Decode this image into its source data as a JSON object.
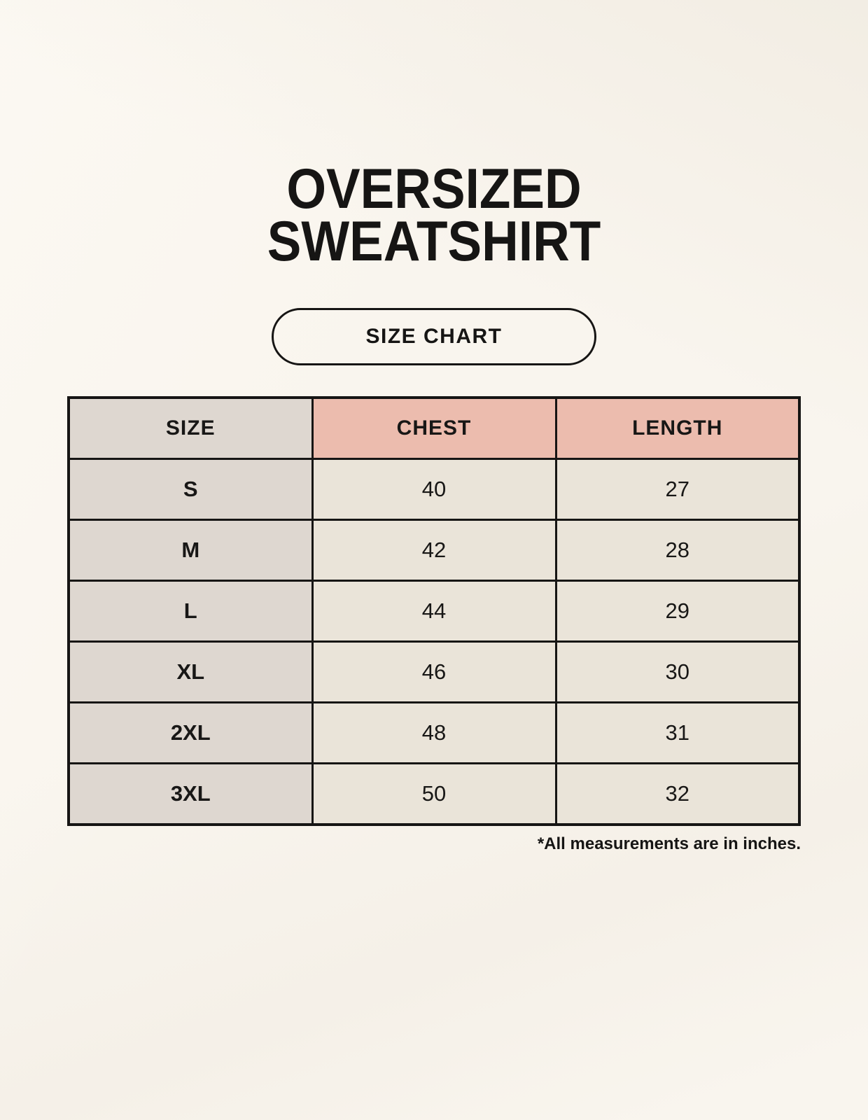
{
  "title": {
    "line1": "OVERSIZED",
    "line2": "SWEATSHIRT"
  },
  "size_chart_button": {
    "label": "SIZE CHART"
  },
  "footnote": "*All measurements are in inches.",
  "colors": {
    "background": "#f9f5ee",
    "header_accent_pink": "#ecbcae",
    "size_column_taupe": "#ded7d0",
    "cell_cream": "#eae4d9",
    "border_black": "#161514",
    "text_black": "#181716"
  },
  "chart_data": {
    "type": "table",
    "title": "SIZE CHART",
    "columns": [
      "SIZE",
      "CHEST",
      "LENGTH"
    ],
    "rows": [
      [
        "S",
        40,
        27
      ],
      [
        "M",
        42,
        28
      ],
      [
        "L",
        44,
        29
      ],
      [
        "XL",
        46,
        30
      ],
      [
        "2XL",
        48,
        31
      ],
      [
        "3XL",
        50,
        32
      ]
    ],
    "units": "inches"
  }
}
